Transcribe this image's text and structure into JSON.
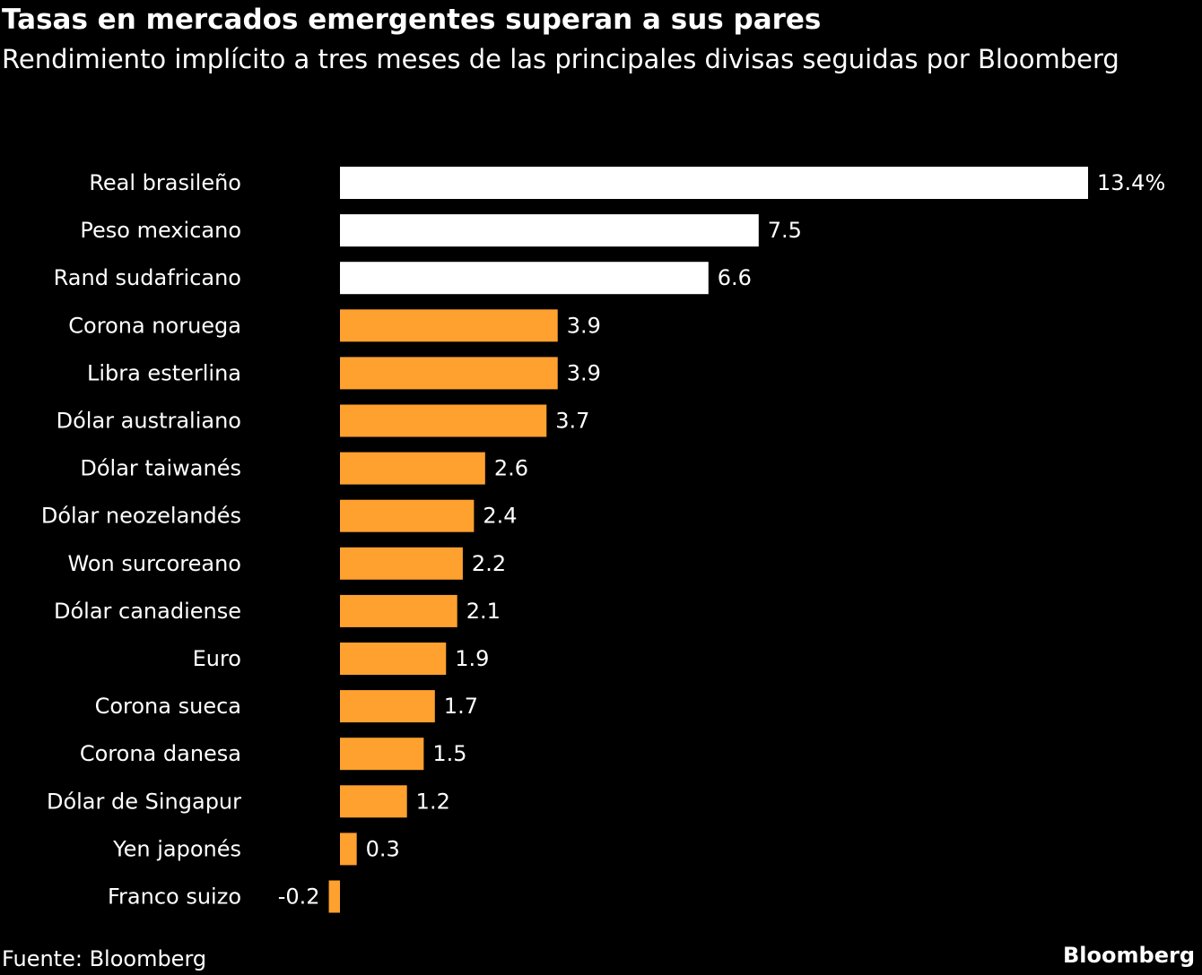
{
  "chart_data": {
    "type": "bar",
    "orientation": "horizontal",
    "title": "Tasas en mercados emergentes superan a sus pares",
    "subtitle": "Rendimiento implícito a tres meses de las principales divisas seguidas por Bloomberg",
    "categories": [
      "Real brasileño",
      "Peso mexicano",
      "Rand sudafricano",
      "Corona noruega",
      "Libra esterlina",
      "Dólar australiano",
      "Dólar taiwanés",
      "Dólar neozelandés",
      "Won surcoreano",
      "Dólar canadiense",
      "Euro",
      "Corona sueca",
      "Corona danesa",
      "Dólar de Singapur",
      "Yen japonés",
      "Franco suizo"
    ],
    "values": [
      13.4,
      7.5,
      6.6,
      3.9,
      3.9,
      3.7,
      2.6,
      2.4,
      2.2,
      2.1,
      1.9,
      1.7,
      1.5,
      1.2,
      0.3,
      -0.2
    ],
    "data_labels": [
      "13.4%",
      "7.5",
      "6.6",
      "3.9",
      "3.9",
      "3.7",
      "2.6",
      "2.4",
      "2.2",
      "2.1",
      "1.9",
      "1.7",
      "1.5",
      "1.2",
      "0.3",
      "-0.2"
    ],
    "highlighted": [
      true,
      true,
      true,
      false,
      false,
      false,
      false,
      false,
      false,
      false,
      false,
      false,
      false,
      false,
      false,
      false
    ],
    "colors": {
      "highlight": "#ffffff",
      "default": "#ffa12f",
      "background": "#000000"
    },
    "grid": false,
    "legend": "none"
  },
  "footer": {
    "source": "Fuente: Bloomberg",
    "logo": "Bloomberg"
  }
}
